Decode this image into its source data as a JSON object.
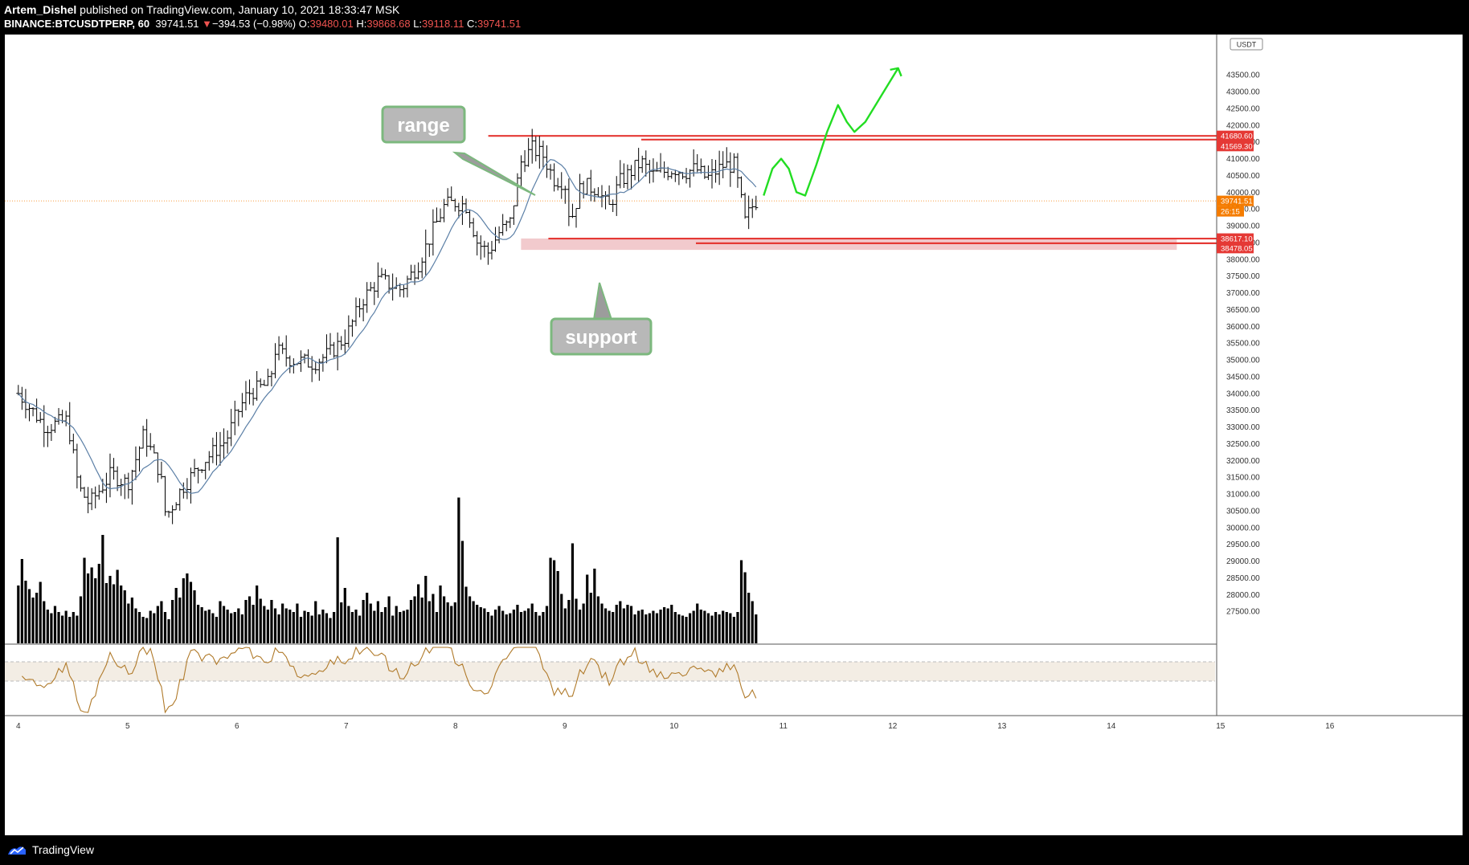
{
  "header": {
    "author": "Artem_Dishel",
    "published_text": " published on TradingView.com, January 10, 2021 18:33:47 MSK",
    "symbol": "BINANCE:BTCUSDTPERP, 60",
    "last": "39741.51",
    "change_arrow": "▼",
    "change": "−394.53 (−0.98%)",
    "o_label": "O:",
    "o_value": "39480.01",
    "h_label": "H:",
    "h_value": "39868.68",
    "l_label": "L:",
    "l_value": "39118.11",
    "c_label": "C:",
    "c_value": "39741.51"
  },
  "footer": {
    "brand": "TradingView"
  },
  "colors": {
    "level_line": "#e53935",
    "support_zone": "#e9a6ab",
    "forecast": "#22dd22",
    "ma_line": "#5b7fa6",
    "oscillator": "#b07a2a",
    "osc_band": "#f3ede4",
    "last_price": "#f57c00",
    "callout_fill": "#b8b8b8",
    "callout_border": "#7cb87e"
  },
  "chart_data": {
    "type": "candlestick",
    "currency_badge": "USDT",
    "ylim": [
      27000,
      44200
    ],
    "y_ticks": [
      "43500.00",
      "43000.00",
      "42500.00",
      "42000.00",
      "41500.00",
      "41000.00",
      "40500.00",
      "40000.00",
      "39500.00",
      "39000.00",
      "38500.00",
      "38000.00",
      "37500.00",
      "37000.00",
      "36500.00",
      "36000.00",
      "35500.00",
      "35000.00",
      "34500.00",
      "34000.00",
      "33500.00",
      "33000.00",
      "32500.00",
      "32000.00",
      "31500.00",
      "31000.00",
      "30500.00",
      "30000.00",
      "29500.00",
      "29000.00",
      "28500.00",
      "28000.00",
      "27500.00"
    ],
    "x_ticks": [
      "4",
      "5",
      "6",
      "7",
      "8",
      "9",
      "10",
      "11",
      "12",
      "13",
      "14",
      "15",
      "16"
    ],
    "price_labels": [
      {
        "text": "41680.60",
        "value": 41680.6,
        "color": "#e53935"
      },
      {
        "text": "41569.30",
        "value": 41569.3,
        "color": "#e53935"
      },
      {
        "text": "39741.51",
        "value": 39741.51,
        "color": "#f57c00"
      },
      {
        "text": "26:15",
        "value": 39500,
        "color": "#f57c00"
      },
      {
        "text": "38617.10",
        "value": 38617.1,
        "color": "#e53935"
      },
      {
        "text": "38478.05",
        "value": 38478.05,
        "color": "#e53935"
      }
    ],
    "levels": [
      {
        "value": 41680.6,
        "from_day": 8.3
      },
      {
        "value": 41569.3,
        "from_day": 9.7
      },
      {
        "value": 38617.1,
        "from_day": 8.85
      },
      {
        "value": 38478.05,
        "from_day": 10.2
      }
    ],
    "support_zone": {
      "from_day": 8.6,
      "to_day": 14.6,
      "low": 38280,
      "high": 38620
    },
    "last_price": 39741.51,
    "anchors": [
      [
        4.0,
        34000
      ],
      [
        4.25,
        33000
      ],
      [
        4.45,
        33200
      ],
      [
        4.55,
        31200
      ],
      [
        4.65,
        30700
      ],
      [
        4.85,
        31600
      ],
      [
        5.0,
        31300
      ],
      [
        5.15,
        32800
      ],
      [
        5.3,
        31600
      ],
      [
        5.35,
        30300
      ],
      [
        5.5,
        31200
      ],
      [
        5.7,
        32000
      ],
      [
        5.9,
        32600
      ],
      [
        6.0,
        33400
      ],
      [
        6.1,
        34000
      ],
      [
        6.3,
        34300
      ],
      [
        6.35,
        35300
      ],
      [
        6.5,
        35000
      ],
      [
        6.7,
        34900
      ],
      [
        6.85,
        35200
      ],
      [
        7.0,
        35700
      ],
      [
        7.15,
        36800
      ],
      [
        7.3,
        37400
      ],
      [
        7.5,
        37100
      ],
      [
        7.65,
        37800
      ],
      [
        7.8,
        38900
      ],
      [
        7.9,
        39600
      ],
      [
        8.0,
        39700
      ],
      [
        8.1,
        39600
      ],
      [
        8.2,
        38500
      ],
      [
        8.3,
        38200
      ],
      [
        8.4,
        38800
      ],
      [
        8.5,
        39100
      ],
      [
        8.6,
        40900
      ],
      [
        8.7,
        41300
      ],
      [
        8.8,
        41100
      ],
      [
        8.9,
        40400
      ],
      [
        9.0,
        40300
      ],
      [
        9.05,
        39100
      ],
      [
        9.15,
        40200
      ],
      [
        9.3,
        40100
      ],
      [
        9.4,
        39500
      ],
      [
        9.5,
        40300
      ],
      [
        9.6,
        40600
      ],
      [
        9.7,
        40900
      ],
      [
        9.8,
        40500
      ],
      [
        9.9,
        40600
      ],
      [
        10.0,
        40700
      ],
      [
        10.1,
        40600
      ],
      [
        10.2,
        40700
      ],
      [
        10.3,
        40400
      ],
      [
        10.45,
        40800
      ],
      [
        10.55,
        40800
      ],
      [
        10.6,
        40000
      ],
      [
        10.65,
        39100
      ],
      [
        10.7,
        39500
      ],
      [
        10.75,
        39741.51
      ]
    ],
    "volume_scale": [
      0,
      16000
    ],
    "volume": [
      4800,
      7000,
      5200,
      4500,
      3800,
      4200,
      5100,
      3500,
      2800,
      2500,
      3100,
      2600,
      2300,
      2700,
      2200,
      2600,
      2300,
      3900,
      7100,
      5800,
      6300,
      5400,
      6600,
      9000,
      5000,
      5600,
      4900,
      6100,
      4800,
      4400,
      3300,
      3800,
      2900,
      2600,
      2200,
      2100,
      2700,
      2500,
      3100,
      3500,
      2600,
      2000,
      3600,
      4600,
      3800,
      5400,
      5800,
      5100,
      4400,
      3200,
      3000,
      2700,
      2800,
      2500,
      2200,
      3500,
      3100,
      2800,
      2500,
      2600,
      2900,
      2400,
      3600,
      3900,
      3200,
      4800,
      3700,
      3100,
      2800,
      3600,
      2900,
      2400,
      3300,
      2900,
      2800,
      2600,
      3300,
      2200,
      2700,
      2600,
      2300,
      3500,
      2400,
      2800,
      2500,
      2100,
      2600,
      8800,
      3400,
      4600,
      3100,
      2600,
      2800,
      2300,
      3600,
      4200,
      3300,
      2700,
      3500,
      2600,
      3000,
      3900,
      2300,
      3100,
      2600,
      2700,
      2800,
      3600,
      3900,
      4900,
      3800,
      5600,
      3500,
      4100,
      2600,
      4800,
      3900,
      3400,
      3100,
      3400,
      12100,
      8500,
      4700,
      3900,
      3500,
      3200,
      3000,
      2900,
      2600,
      2300,
      2800,
      3100,
      2700,
      2400,
      2500,
      2800,
      3200,
      2600,
      2700,
      2900,
      3300,
      2600,
      2300,
      2600,
      3100,
      7100,
      6900,
      6000,
      4100,
      2900,
      3600,
      8300,
      3700,
      2800,
      3300,
      5700,
      4200,
      6200,
      3900,
      3300,
      2900,
      2700,
      2600,
      3200,
      3500,
      2900,
      3200,
      3100,
      2400,
      2700,
      2800,
      2400,
      2500,
      2700,
      2500,
      2800,
      3000,
      2900,
      3200,
      2600,
      2400,
      2300,
      2200,
      2500,
      2700,
      3300,
      2800,
      2700,
      2500,
      2300,
      2600,
      2400,
      2700,
      2600,
      2500,
      2200,
      2600,
      6900,
      5900,
      4200,
      3500,
      2400
    ]
  }
}
